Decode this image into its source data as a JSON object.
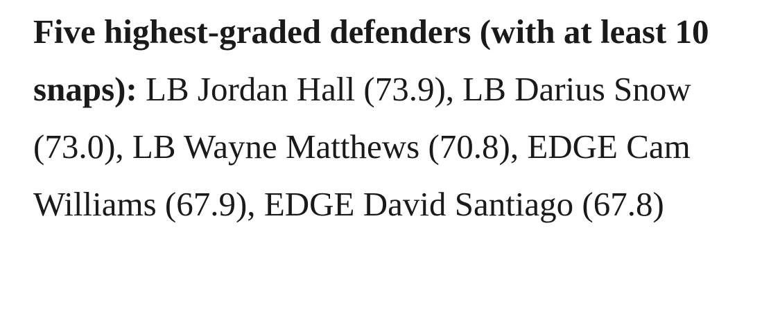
{
  "paragraph": {
    "lead": "Five highest-graded defenders (with at least 10 snaps):",
    "items": [
      "LB Jordan Hall (73.9),",
      "LB Darius Snow (73.0),",
      "LB Wayne Matthews (70.8),",
      "EDGE Cam Williams (67.9),",
      "EDGE David Santiago (67.8)"
    ]
  }
}
